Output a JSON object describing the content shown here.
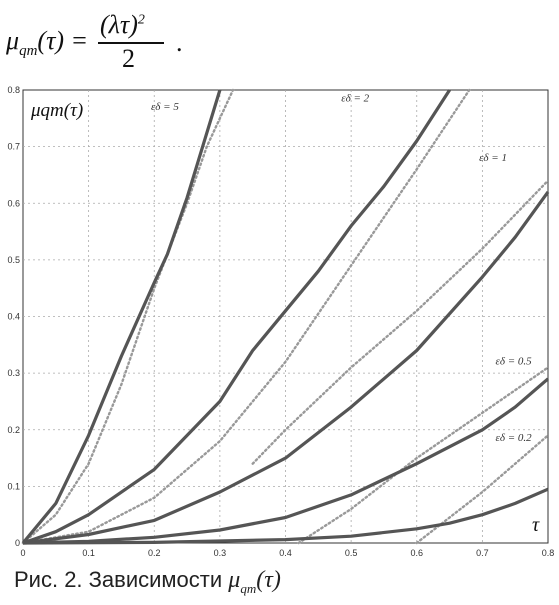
{
  "formula": {
    "lhs": "μ",
    "lhs_sub": "qm",
    "lhs_arg": "(τ) =",
    "numerator": "(λτ)",
    "numerator_pow": "2",
    "denominator": "2",
    "end": "."
  },
  "caption": {
    "prefix": "Рис. 2. Зависимости",
    "func": "μ",
    "func_sub": "qm",
    "func_arg": "(τ)"
  },
  "chart_data": {
    "type": "line",
    "ylabel": "μqm(τ)",
    "xlabel": "τ",
    "xlim": [
      0,
      0.8
    ],
    "ylim": [
      0,
      0.8
    ],
    "x_ticks": [
      "0",
      "0.1",
      "0.2",
      "0.3",
      "0.4",
      "0.5",
      "0.6",
      "0.7",
      "0.8"
    ],
    "y_ticks": [
      "0",
      "0.1",
      "0.2",
      "0.3",
      "0.4",
      "0.5",
      "0.6",
      "0.7",
      "0.8"
    ],
    "grid": true,
    "line_color": "#555555",
    "dotted_color": "#999999",
    "series": [
      {
        "name": "εδ = 5",
        "x": [
          0,
          0.05,
          0.1,
          0.15,
          0.2,
          0.22,
          0.25,
          0.3
        ],
        "y": [
          0,
          0.07,
          0.19,
          0.33,
          0.46,
          0.51,
          0.61,
          0.8
        ]
      },
      {
        "name": "εδ = 2",
        "x": [
          0,
          0.05,
          0.1,
          0.2,
          0.3,
          0.35,
          0.4,
          0.45,
          0.5,
          0.55,
          0.6,
          0.65
        ],
        "y": [
          0,
          0.02,
          0.05,
          0.13,
          0.25,
          0.34,
          0.41,
          0.48,
          0.56,
          0.63,
          0.71,
          0.8
        ]
      },
      {
        "name": "εδ = 1",
        "x": [
          0,
          0.1,
          0.2,
          0.3,
          0.4,
          0.5,
          0.6,
          0.7,
          0.75,
          0.8
        ],
        "y": [
          0,
          0.015,
          0.04,
          0.09,
          0.15,
          0.24,
          0.34,
          0.47,
          0.54,
          0.62
        ]
      },
      {
        "name": "εδ = 0.5",
        "x": [
          0,
          0.1,
          0.2,
          0.3,
          0.4,
          0.5,
          0.6,
          0.7,
          0.75,
          0.8
        ],
        "y": [
          0,
          0.003,
          0.01,
          0.023,
          0.045,
          0.085,
          0.14,
          0.2,
          0.24,
          0.29
        ]
      },
      {
        "name": "εδ = 0.2",
        "x": [
          0,
          0.2,
          0.4,
          0.5,
          0.6,
          0.65,
          0.7,
          0.75,
          0.8
        ],
        "y": [
          0,
          0.001,
          0.006,
          0.012,
          0.025,
          0.035,
          0.05,
          0.07,
          0.095
        ]
      }
    ],
    "dotted_series": [
      {
        "x": [
          0,
          0.05,
          0.1,
          0.15,
          0.2,
          0.25,
          0.28,
          0.32
        ],
        "y": [
          0,
          0.05,
          0.14,
          0.28,
          0.45,
          0.6,
          0.7,
          0.8
        ]
      },
      {
        "x": [
          0,
          0.1,
          0.2,
          0.3,
          0.4,
          0.5,
          0.6,
          0.68
        ],
        "y": [
          0,
          0.02,
          0.08,
          0.18,
          0.32,
          0.49,
          0.66,
          0.8
        ]
      },
      {
        "x": [
          0.35,
          0.4,
          0.5,
          0.6,
          0.7,
          0.8
        ],
        "y": [
          0.14,
          0.2,
          0.31,
          0.41,
          0.52,
          0.64
        ]
      },
      {
        "x": [
          0.42,
          0.5,
          0.6,
          0.7,
          0.8
        ],
        "y": [
          0,
          0.06,
          0.15,
          0.23,
          0.31
        ]
      },
      {
        "x": [
          0.6,
          0.7,
          0.8
        ],
        "y": [
          0,
          0.09,
          0.19
        ]
      }
    ]
  }
}
